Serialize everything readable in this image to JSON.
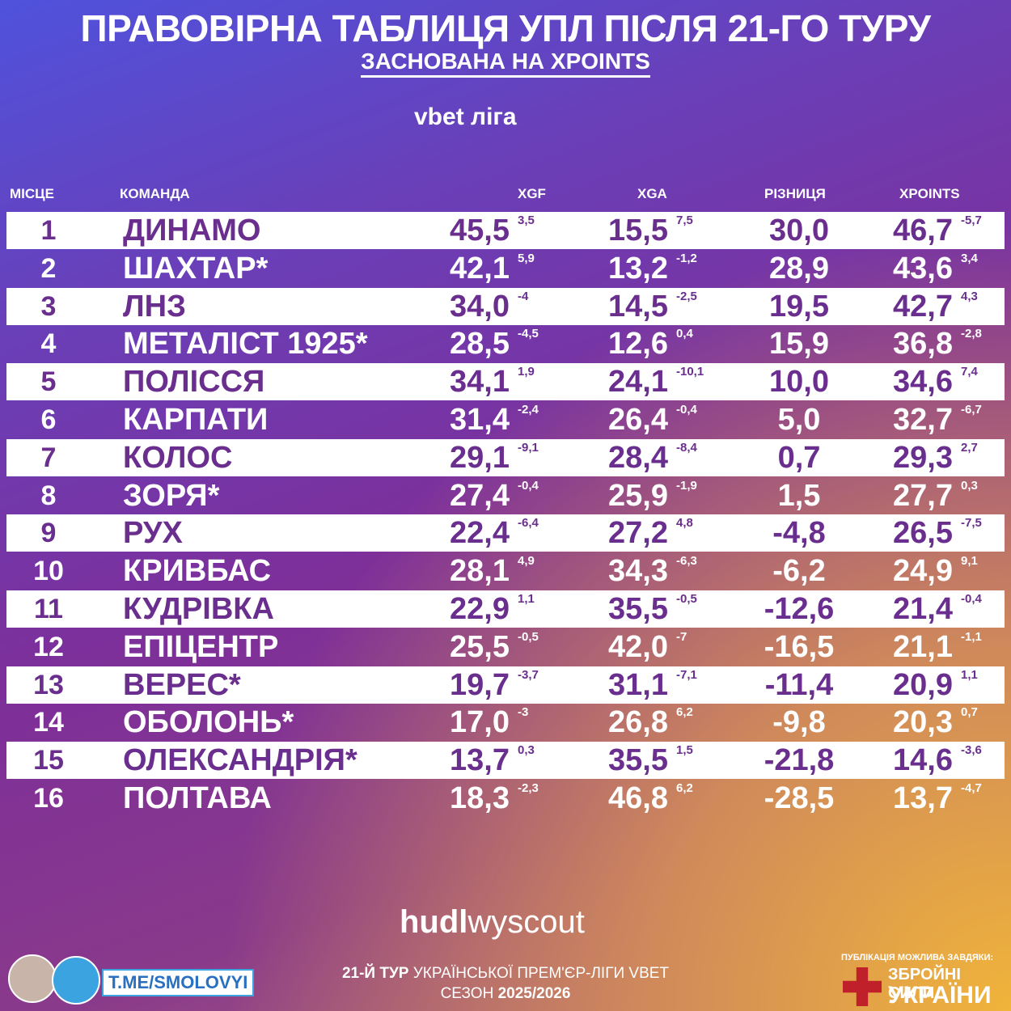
{
  "header": {
    "title": "ПРАВОВІРНА ТАБЛИЦЯ УПЛ ПІСЛЯ 21-ГО ТУРУ",
    "subtitle": "ЗАСНОВАНА НА XPOINTS",
    "league_logo": "vbet ліга"
  },
  "table": {
    "columns": [
      "МІСЦЕ",
      "КОМАНДА",
      "XGF",
      "XGA",
      "РІЗНИЦЯ",
      "XPOINTS"
    ],
    "rows": [
      [
        "1",
        "ДИНАМО",
        "45,5",
        "3,5",
        "15,5",
        "7,5",
        "30,0",
        "46,7",
        "-5,7"
      ],
      [
        "2",
        "ШАХТАР*",
        "42,1",
        "5,9",
        "13,2",
        "-1,2",
        "28,9",
        "43,6",
        "3,4"
      ],
      [
        "3",
        "ЛНЗ",
        "34,0",
        "-4",
        "14,5",
        "-2,5",
        "19,5",
        "42,7",
        "4,3"
      ],
      [
        "4",
        "МЕТАЛІСТ 1925*",
        "28,5",
        "-4,5",
        "12,6",
        "0,4",
        "15,9",
        "36,8",
        "-2,8"
      ],
      [
        "5",
        "ПОЛІССЯ",
        "34,1",
        "1,9",
        "24,1",
        "-10,1",
        "10,0",
        "34,6",
        "7,4"
      ],
      [
        "6",
        "КАРПАТИ",
        "31,4",
        "-2,4",
        "26,4",
        "-0,4",
        "5,0",
        "32,7",
        "-6,7"
      ],
      [
        "7",
        "КОЛОС",
        "29,1",
        "-9,1",
        "28,4",
        "-8,4",
        "0,7",
        "29,3",
        "2,7"
      ],
      [
        "8",
        "ЗОРЯ*",
        "27,4",
        "-0,4",
        "25,9",
        "-1,9",
        "1,5",
        "27,7",
        "0,3"
      ],
      [
        "9",
        "РУХ",
        "22,4",
        "-6,4",
        "27,2",
        "4,8",
        "-4,8",
        "26,5",
        "-7,5"
      ],
      [
        "10",
        "КРИВБАС",
        "28,1",
        "4,9",
        "34,3",
        "-6,3",
        "-6,2",
        "24,9",
        "9,1"
      ],
      [
        "11",
        "КУДРІВКА",
        "22,9",
        "1,1",
        "35,5",
        "-0,5",
        "-12,6",
        "21,4",
        "-0,4"
      ],
      [
        "12",
        "ЕПІЦЕНТР",
        "25,5",
        "-0,5",
        "42,0",
        "-7",
        "-16,5",
        "21,1",
        "-1,1"
      ],
      [
        "13",
        "ВЕРЕС*",
        "19,7",
        "-3,7",
        "31,1",
        "-7,1",
        "-11,4",
        "20,9",
        "1,1"
      ],
      [
        "14",
        "ОБОЛОНЬ*",
        "17,0",
        "-3",
        "26,8",
        "6,2",
        "-9,8",
        "20,3",
        "0,7"
      ],
      [
        "15",
        "ОЛЕКСАНДРІЯ*",
        "13,7",
        "0,3",
        "35,5",
        "1,5",
        "-21,8",
        "14,6",
        "-3,6"
      ],
      [
        "16",
        "ПОЛТАВА",
        "18,3",
        "-2,3",
        "46,8",
        "6,2",
        "-28,5",
        "13,7",
        "-4,7"
      ]
    ]
  },
  "footer": {
    "data_logo_bold": "hudl",
    "data_logo_light": "wyscout",
    "channel": "T.ME/SMOLOVYI",
    "round_bold": "21-Й ТУР",
    "round_rest": "УКРАЇНСЬКОЇ ПРЕМ'ЄР-ЛІГИ VBET",
    "season_label": "СЕЗОН",
    "season": "2025/2026",
    "thanks": "ПУБЛІКАЦІЯ МОЖЛИВА ЗАВДЯКИ:",
    "army_line1": "ЗБРОЙНІ СИЛИ",
    "army_line2": "УКРАЇНИ"
  }
}
